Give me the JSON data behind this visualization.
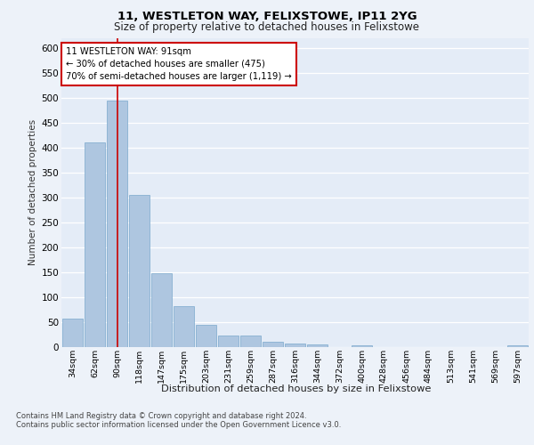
{
  "title1": "11, WESTLETON WAY, FELIXSTOWE, IP11 2YG",
  "title2": "Size of property relative to detached houses in Felixstowe",
  "xlabel": "Distribution of detached houses by size in Felixstowe",
  "ylabel": "Number of detached properties",
  "categories": [
    "34sqm",
    "62sqm",
    "90sqm",
    "118sqm",
    "147sqm",
    "175sqm",
    "203sqm",
    "231sqm",
    "259sqm",
    "287sqm",
    "316sqm",
    "344sqm",
    "372sqm",
    "400sqm",
    "428sqm",
    "456sqm",
    "484sqm",
    "513sqm",
    "541sqm",
    "569sqm",
    "597sqm"
  ],
  "values": [
    57,
    410,
    495,
    305,
    148,
    82,
    44,
    24,
    24,
    10,
    7,
    6,
    0,
    4,
    0,
    0,
    0,
    0,
    0,
    0,
    4
  ],
  "bar_color": "#aec6e0",
  "bar_edge_color": "#7aa8cc",
  "vline_x_index": 2,
  "vline_color": "#cc0000",
  "annotation_line1": "11 WESTLETON WAY: 91sqm",
  "annotation_line2": "← 30% of detached houses are smaller (475)",
  "annotation_line3": "70% of semi-detached houses are larger (1,119) →",
  "annotation_box_color": "#ffffff",
  "annotation_box_edge": "#cc0000",
  "ylim": [
    0,
    620
  ],
  "yticks": [
    0,
    50,
    100,
    150,
    200,
    250,
    300,
    350,
    400,
    450,
    500,
    550,
    600
  ],
  "footnote1": "Contains HM Land Registry data © Crown copyright and database right 2024.",
  "footnote2": "Contains public sector information licensed under the Open Government Licence v3.0.",
  "bg_color": "#edf2f9",
  "plot_bg_color": "#e4ecf7"
}
